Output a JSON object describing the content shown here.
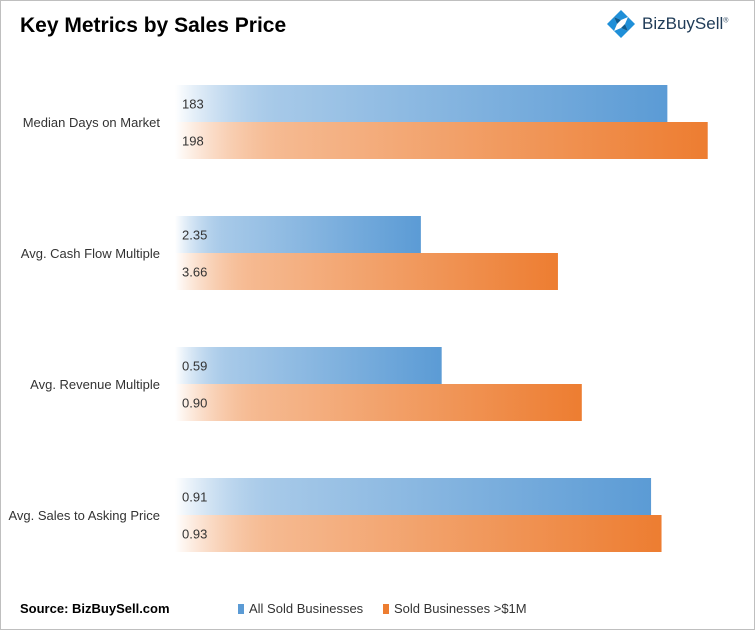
{
  "title": "Key Metrics by Sales Price",
  "logo": {
    "text": "BizBuySell",
    "mark": "®",
    "icon": "bizbuysell-logo-icon",
    "color": "#1f8fd8"
  },
  "source": "Source: BizBuySell.com",
  "colors": {
    "series_a": "#5b9bd5",
    "series_a_light": "#ffffff",
    "series_b": "#ed7d31",
    "series_b_light": "#ffffff"
  },
  "chart_data": {
    "type": "bar",
    "orientation": "horizontal",
    "categories": [
      "Median Days on Market",
      "Avg. Cash Flow Multiple",
      "Avg. Revenue Multiple",
      "Avg. Sales to Asking Price"
    ],
    "series": [
      {
        "name": "All Sold Businesses",
        "values": [
          183,
          2.35,
          0.59,
          0.91
        ],
        "labels": [
          "183",
          "2.35",
          "0.59",
          "0.91"
        ]
      },
      {
        "name": "Sold Businesses >$1M",
        "values": [
          198,
          3.66,
          0.9,
          0.93
        ],
        "labels": [
          "198",
          "3.66",
          "0.90",
          "0.93"
        ]
      }
    ],
    "category_ranges": [
      [
        0,
        210
      ],
      [
        0,
        5.4
      ],
      [
        0,
        1.25
      ],
      [
        0,
        1.08
      ]
    ],
    "legend_position": "bottom",
    "grid": false,
    "data_labels": "inside-base"
  }
}
